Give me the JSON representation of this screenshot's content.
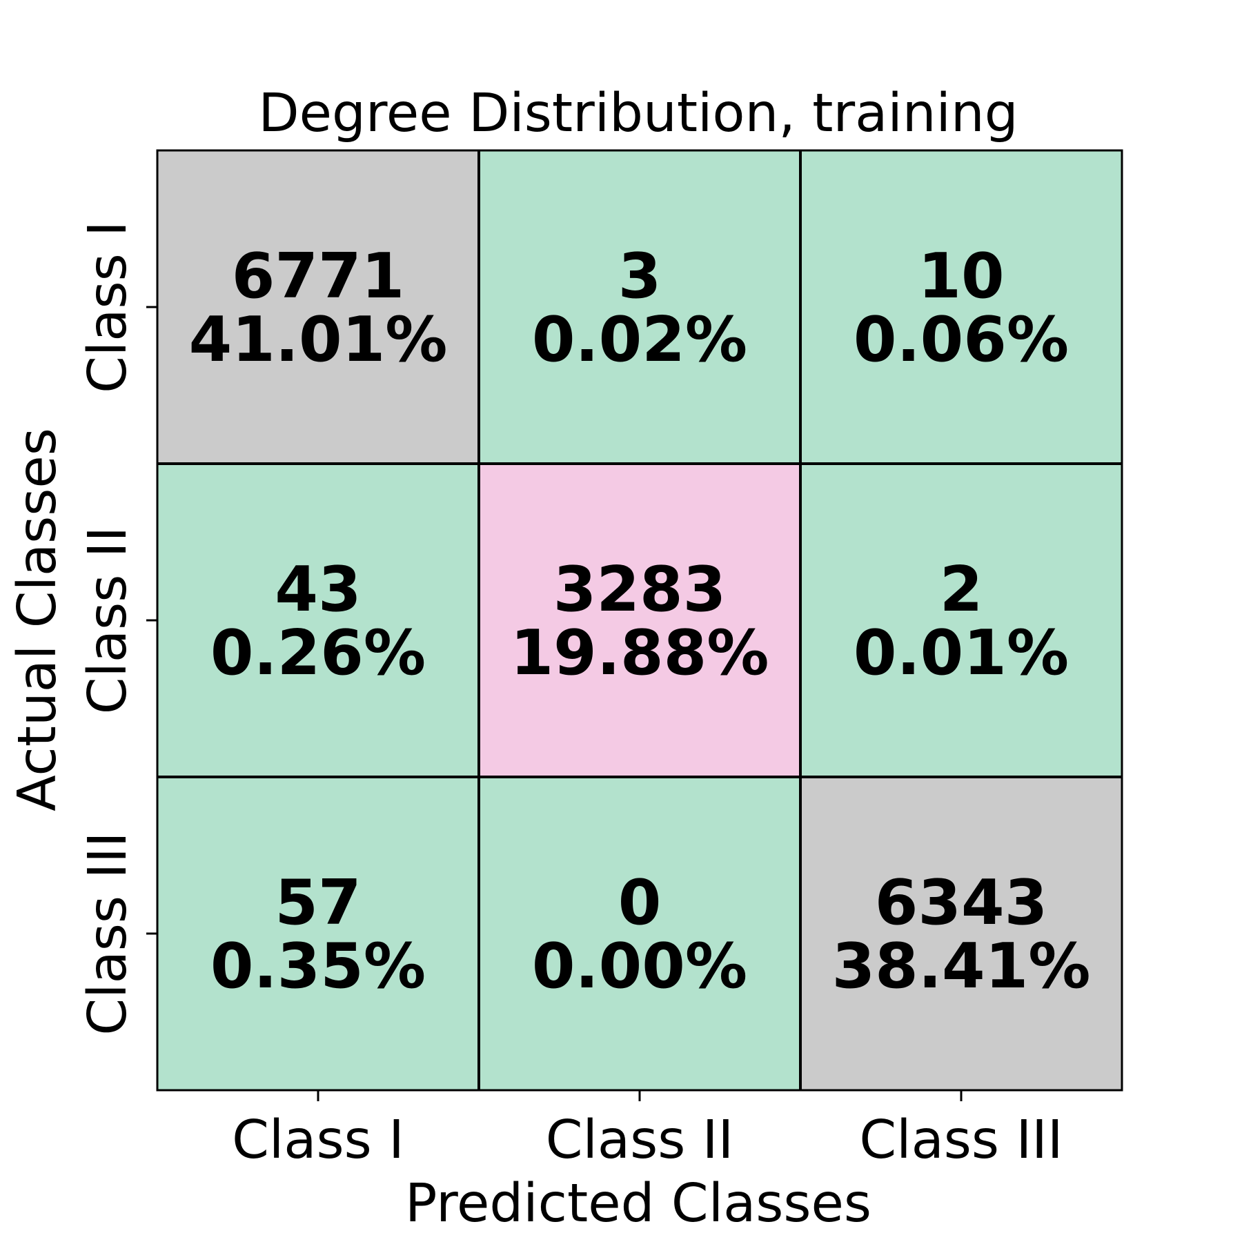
{
  "chart_data": {
    "type": "heatmap",
    "title": "Degree Distribution, training",
    "xlabel": "Predicted Classes",
    "ylabel": "Actual Classes",
    "x_categories": [
      "Class I",
      "Class II",
      "Class III"
    ],
    "y_categories": [
      "Class I",
      "Class II",
      "Class III"
    ],
    "counts": [
      [
        6771,
        3,
        10
      ],
      [
        43,
        3283,
        2
      ],
      [
        57,
        0,
        6343
      ]
    ],
    "percentages": [
      [
        "41.01%",
        "0.02%",
        "0.06%"
      ],
      [
        "0.26%",
        "19.88%",
        "0.01%"
      ],
      [
        "0.35%",
        "0.00%",
        "38.41%"
      ]
    ],
    "cell_colors": [
      [
        "#cbcbcb",
        "#b3e2cd",
        "#b3e2cd"
      ],
      [
        "#b3e2cd",
        "#f4cae4",
        "#b3e2cd"
      ],
      [
        "#b3e2cd",
        "#b3e2cd",
        "#cbcbcb"
      ]
    ]
  }
}
